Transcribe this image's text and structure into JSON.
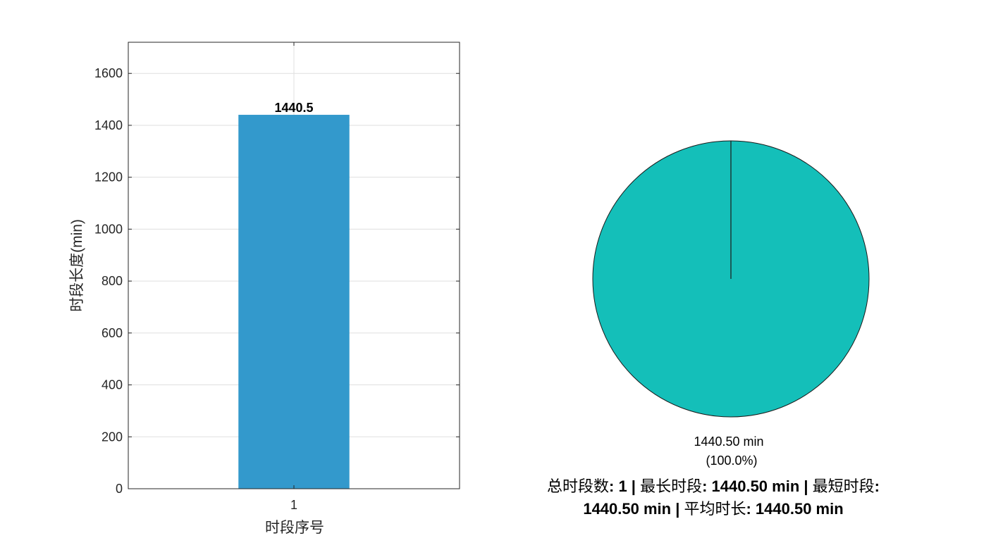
{
  "chart_data": [
    {
      "type": "bar",
      "categories": [
        "1"
      ],
      "values": [
        1440.5
      ],
      "data_labels": [
        "1440.5"
      ],
      "xlabel": "时段序号",
      "ylabel": "时段长度(min)",
      "ylim": [
        0,
        1720
      ],
      "yticks": [
        0,
        200,
        400,
        600,
        800,
        1000,
        1200,
        1400,
        1600
      ],
      "grid": true,
      "bar_color": "#3399CC"
    },
    {
      "type": "pie",
      "slices": [
        {
          "value": 1440.5,
          "label": "1440.50 min",
          "percent_label": "(100.0%)",
          "color": "#14BFB9"
        }
      ],
      "summary_parts": [
        {
          "text": "总时段数",
          "bold": false
        },
        {
          "text": ": 1 | ",
          "bold": true
        },
        {
          "text": "最长时段",
          "bold": false
        },
        {
          "text": ": 1440.50 min | ",
          "bold": true
        },
        {
          "text": "最短时段",
          "bold": false
        },
        {
          "text": ": 1440.50 min | ",
          "bold": true
        },
        {
          "text": "平均时长",
          "bold": false
        },
        {
          "text": ": 1440.50 min",
          "bold": true
        }
      ]
    }
  ]
}
